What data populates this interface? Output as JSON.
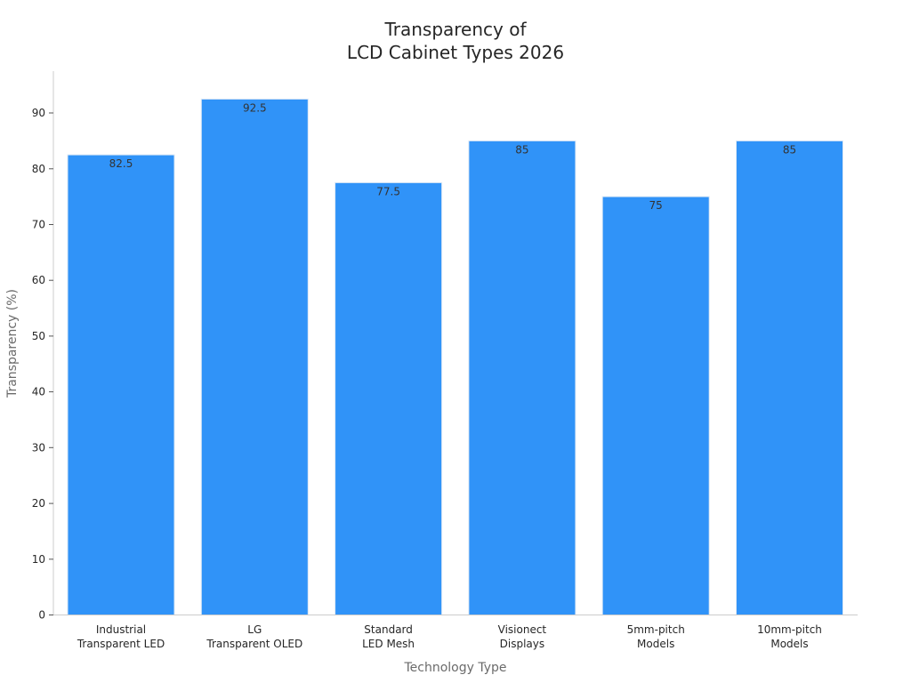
{
  "chart_data": {
    "type": "bar",
    "title": [
      "Transparency of",
      "LCD Cabinet Types 2026"
    ],
    "xlabel": "Technology Type",
    "ylabel": "Transparency (%)",
    "categories": [
      [
        "Industrial",
        "Transparent LED"
      ],
      [
        "LG",
        "Transparent OLED"
      ],
      [
        "Standard",
        "LED Mesh"
      ],
      [
        "Visionect",
        "Displays"
      ],
      [
        "5mm-pitch",
        "Models"
      ],
      [
        "10mm-pitch",
        "Models"
      ]
    ],
    "values": [
      82.5,
      92.5,
      77.5,
      85,
      75,
      85
    ],
    "data_labels": [
      "82.5",
      "92.5",
      "77.5",
      "85",
      "75",
      "85"
    ],
    "yticks": [
      0,
      10,
      20,
      30,
      40,
      50,
      60,
      70,
      80,
      90
    ],
    "ylim": [
      0,
      97.5
    ],
    "grid": false,
    "legend": "none",
    "bar_color": "#3093f8",
    "bar_edge_color": "#dce8f5"
  }
}
